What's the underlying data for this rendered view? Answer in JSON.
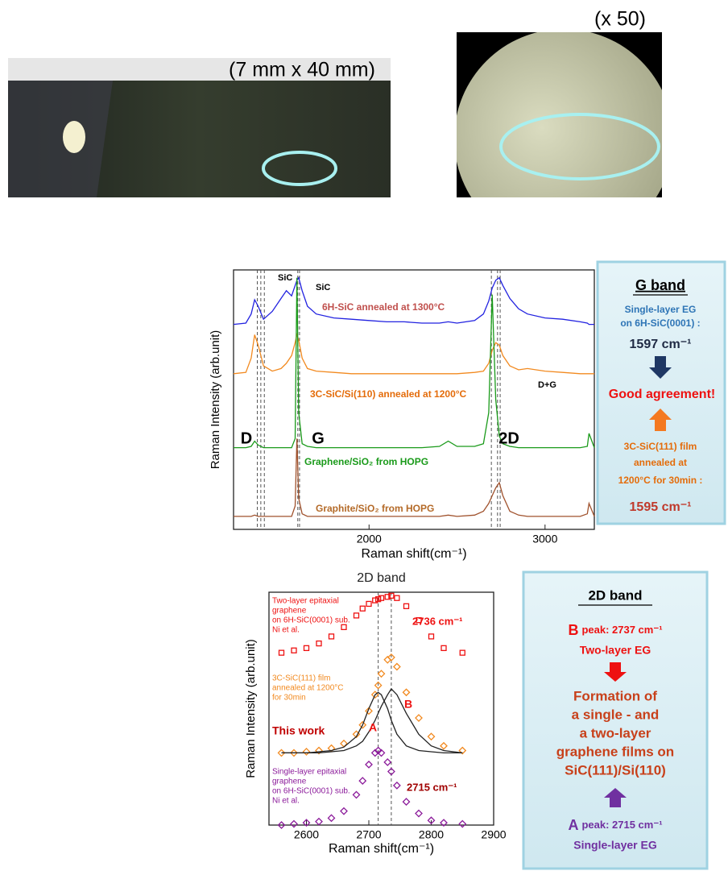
{
  "photos": [
    {
      "label": "(7 mm x 40 mm)"
    },
    {
      "label": "(x 50)"
    }
  ],
  "chart_data": [
    {
      "type": "line",
      "ylabel": "Raman Intensity (arb.unit)",
      "xlabel": "Raman shift(cm⁻¹)",
      "x": [
        1230,
        1300,
        1330,
        1350,
        1370,
        1400,
        1450,
        1500,
        1530,
        1560,
        1580,
        1590,
        1600,
        1620,
        1650,
        1700,
        1800,
        1900,
        2000,
        2100,
        2200,
        2300,
        2400,
        2450,
        2500,
        2600,
        2650,
        2680,
        2700,
        2720,
        2740,
        2760,
        2800,
        2850,
        2900,
        3000,
        3100,
        3200,
        3240,
        3250,
        3280
      ],
      "xlim": [
        1230,
        3280
      ],
      "xticks": [
        2000,
        3000
      ],
      "ylim": [
        0,
        10
      ],
      "vlines": [
        1365,
        1385,
        1405,
        1595,
        1605,
        2695,
        2730,
        2745
      ],
      "series": [
        {
          "color": "#2222e0",
          "values": [
            7.9,
            7.95,
            8.3,
            8.85,
            8.6,
            8.1,
            8.4,
            8.9,
            9.2,
            9.0,
            9.4,
            9.6,
            9.7,
            9.2,
            8.6,
            8.3,
            8.15,
            8.1,
            8.05,
            8.0,
            8.0,
            7.95,
            7.95,
            8.0,
            7.95,
            8.05,
            8.3,
            8.8,
            9.3,
            9.6,
            9.7,
            9.4,
            8.9,
            8.5,
            8.3,
            8.15,
            8.1,
            8.0,
            7.95,
            7.9,
            7.9
          ]
        },
        {
          "color": "#f28a20",
          "values": [
            6.0,
            6.05,
            6.6,
            7.5,
            7.1,
            6.3,
            6.1,
            6.2,
            6.4,
            6.7,
            7.2,
            7.5,
            7.3,
            6.6,
            6.2,
            6.1,
            6.05,
            6.0,
            6.0,
            6.0,
            6.0,
            6.0,
            6.0,
            6.0,
            6.0,
            6.05,
            6.1,
            6.4,
            6.9,
            7.2,
            7.1,
            6.7,
            6.3,
            6.15,
            6.2,
            6.1,
            6.05,
            6.0,
            6.0,
            6.0,
            6.0
          ]
        },
        {
          "color": "#1a9a1a",
          "values": [
            3.15,
            3.15,
            3.2,
            3.4,
            3.25,
            3.15,
            3.15,
            3.15,
            3.15,
            3.15,
            3.5,
            9.7,
            4.5,
            3.3,
            3.2,
            3.15,
            3.15,
            3.15,
            3.15,
            3.15,
            3.15,
            3.15,
            3.2,
            3.4,
            3.2,
            3.2,
            3.3,
            4.5,
            9.05,
            5.0,
            3.6,
            3.3,
            3.2,
            3.15,
            3.15,
            3.15,
            3.15,
            3.15,
            3.2,
            3.7,
            3.15
          ]
        },
        {
          "color": "#a0522d",
          "values": [
            0.5,
            0.5,
            0.5,
            0.55,
            0.5,
            0.5,
            0.5,
            0.5,
            0.5,
            0.5,
            0.9,
            3.5,
            1.2,
            0.6,
            0.5,
            0.5,
            0.5,
            0.5,
            0.5,
            0.5,
            0.5,
            0.5,
            0.5,
            0.55,
            0.5,
            0.55,
            0.7,
            1.0,
            1.3,
            1.6,
            1.8,
            1.3,
            0.7,
            0.55,
            0.5,
            0.5,
            0.5,
            0.5,
            0.6,
            1.0,
            0.5
          ]
        }
      ],
      "annotations": [
        {
          "lines": [
            "SiC"
          ],
          "color": "#000000"
        },
        {
          "lines": [
            "SiC"
          ],
          "color": "#000000"
        },
        {
          "lines": [
            "6H-SiC annealed at 1300°C"
          ],
          "color": "#c0504d"
        },
        {
          "lines": [
            "3C-SiC/Si(110) annealed at 1200°C"
          ],
          "color": "#e46c0a"
        },
        {
          "lines": [
            "D+G"
          ],
          "color": "#000000"
        },
        {
          "lines": [
            "D"
          ],
          "color": "#000000"
        },
        {
          "lines": [
            "G"
          ],
          "color": "#000000"
        },
        {
          "lines": [
            "2D"
          ],
          "color": "#000000"
        },
        {
          "lines": [
            "Graphene/SiO₂ from HOPG"
          ],
          "color": "#1a9a1a"
        },
        {
          "lines": [
            "Graphite/SiO₂ from HOPG"
          ],
          "color": "#b46a28"
        }
      ]
    },
    {
      "type": "line",
      "title": "2D band",
      "ylabel": "Raman Intensity (arb.unit)",
      "xlabel": "Raman shift(cm⁻¹)",
      "x": [
        2560,
        2580,
        2600,
        2620,
        2640,
        2660,
        2680,
        2690,
        2700,
        2710,
        2715,
        2720,
        2730,
        2736,
        2745,
        2760,
        2780,
        2800,
        2820,
        2850
      ],
      "xlim": [
        2540,
        2900
      ],
      "xticks": [
        2600,
        2700,
        2800,
        2900
      ],
      "ylim": [
        0,
        10
      ],
      "vlines": [
        2715,
        2736
      ],
      "series": [
        {
          "color": "#ee1111",
          "marker": "square",
          "values": [
            7.4,
            7.5,
            7.6,
            7.8,
            8.1,
            8.5,
            9.0,
            9.3,
            9.5,
            9.65,
            9.7,
            9.75,
            9.8,
            9.85,
            9.75,
            9.4,
            8.8,
            8.1,
            7.6,
            7.4
          ]
        },
        {
          "color": "#f28a20",
          "marker": "diamond",
          "values": [
            3.1,
            3.1,
            3.15,
            3.2,
            3.3,
            3.5,
            3.9,
            4.3,
            4.9,
            5.6,
            6.0,
            6.5,
            7.1,
            7.2,
            6.8,
            5.7,
            4.6,
            3.8,
            3.4,
            3.2
          ]
        },
        {
          "color": "#222222",
          "marker": "none",
          "values": [
            3.1,
            3.1,
            3.1,
            3.15,
            3.2,
            3.35,
            3.8,
            4.3,
            5.0,
            5.6,
            5.7,
            5.6,
            5.0,
            4.5,
            3.9,
            3.4,
            3.2,
            3.15,
            3.1,
            3.1
          ]
        },
        {
          "color": "#222222",
          "marker": "none",
          "values": [
            3.1,
            3.1,
            3.1,
            3.1,
            3.15,
            3.2,
            3.4,
            3.6,
            4.0,
            4.5,
            4.8,
            5.1,
            5.6,
            5.85,
            5.6,
            4.8,
            3.9,
            3.4,
            3.2,
            3.1
          ]
        },
        {
          "color": "#8b1a9a",
          "marker": "diamond",
          "values": [
            0,
            0.05,
            0.1,
            0.15,
            0.3,
            0.6,
            1.3,
            1.9,
            2.6,
            3.1,
            3.2,
            3.1,
            2.7,
            2.3,
            1.7,
            1.0,
            0.5,
            0.2,
            0.1,
            0.05
          ]
        }
      ],
      "annotations": [
        {
          "lines": [
            "Two-layer epitaxial",
            "graphene",
            "on 6H-SiC(0001) sub.",
            "Ni et al."
          ],
          "color": "#ee1111"
        },
        {
          "lines": [
            "2736 cm⁻¹"
          ],
          "color": "#ee1111"
        },
        {
          "lines": [
            "3C-SiC(111) film",
            "annealed at 1200°C",
            "for 30min"
          ],
          "color": "#f28a20"
        },
        {
          "lines": [
            "This work"
          ],
          "color": "#c00000"
        },
        {
          "lines": [
            "A"
          ],
          "color": "#ee1111"
        },
        {
          "lines": [
            "B"
          ],
          "color": "#ee1111"
        },
        {
          "lines": [
            "Single-layer epitaxial",
            "graphene",
            "on 6H-SiC(0001) sub.",
            "Ni et al."
          ],
          "color": "#8b1a9a"
        },
        {
          "lines": [
            "2715 cm⁻¹"
          ],
          "color": "#a00000"
        }
      ]
    }
  ],
  "g_band_box": {
    "title": "G band",
    "ref_lines": [
      "Single-layer EG",
      "on 6H-SiC(0001) :"
    ],
    "ref_value": "1597 cm⁻¹",
    "conclusion": "Good agreement!",
    "film_lines": [
      "3C-SiC(111) film",
      "annealed at",
      "1200°C for 30min :"
    ],
    "film_value": "1595 cm⁻¹"
  },
  "band_2d_box": {
    "title": "2D band",
    "b_letter": "B",
    "b_text": "peak:  2737 cm⁻¹",
    "b_label": "Two-layer EG",
    "conclusion_lines": [
      "Formation of",
      "a single - and",
      "a two-layer",
      "graphene films on",
      "SiC(111)/Si(110)"
    ],
    "a_letter": "A",
    "a_text": "peak:  2715 cm⁻¹",
    "a_label": "Single-layer EG"
  }
}
